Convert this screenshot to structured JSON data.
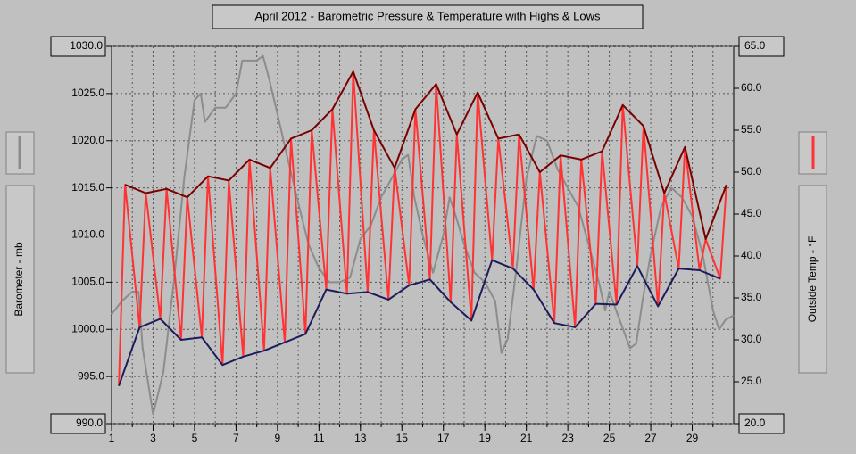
{
  "chart_data": {
    "type": "line",
    "title": "April 2012 - Barometric Pressure & Temperature with Highs & Lows",
    "ylabel": "Barometer - mb",
    "y2label": "Outside Temp - °F",
    "xlim": [
      1,
      31
    ],
    "xticks": [
      1,
      3,
      5,
      7,
      9,
      11,
      13,
      15,
      17,
      19,
      21,
      23,
      25,
      27,
      29
    ],
    "ylim": [
      990,
      1030
    ],
    "yticks": [
      {
        "value": 990,
        "label": "990.0"
      },
      {
        "value": 995,
        "label": "995.0"
      },
      {
        "value": 1000,
        "label": "1000.0"
      },
      {
        "value": 1005,
        "label": "1005.0"
      },
      {
        "value": 1010,
        "label": "1010.0"
      },
      {
        "value": 1015,
        "label": "1015.0"
      },
      {
        "value": 1020,
        "label": "1020.0"
      },
      {
        "value": 1025,
        "label": "1025.0"
      },
      {
        "value": 1030,
        "label": "1030.0"
      }
    ],
    "y2lim": [
      20,
      65
    ],
    "y2ticks": [
      {
        "value": 20,
        "label": "20.0"
      },
      {
        "value": 25,
        "label": "25.0"
      },
      {
        "value": 30,
        "label": "30.0"
      },
      {
        "value": 35,
        "label": "35.0"
      },
      {
        "value": 40,
        "label": "40.0"
      },
      {
        "value": 45,
        "label": "45.0"
      },
      {
        "value": 50,
        "label": "50.0"
      },
      {
        "value": 55,
        "label": "55.0"
      },
      {
        "value": 60,
        "label": "60.0"
      },
      {
        "value": 65,
        "label": "65.0"
      }
    ],
    "grid": true,
    "series": [
      {
        "color": "#8c8c8c",
        "axis": "y",
        "x": [
          1,
          1.5,
          2,
          2.3,
          2.5,
          3,
          3.5,
          4,
          4.5,
          5,
          5.3,
          5.5,
          6,
          6.5,
          7,
          7.3,
          8,
          8.3,
          8.6,
          9,
          9.5,
          10,
          10.5,
          11,
          11.5,
          12,
          12.5,
          13,
          13.5,
          14,
          14.5,
          15,
          15.3,
          15.6,
          16,
          16.5,
          17,
          17.3,
          17.6,
          18,
          18.5,
          19,
          19.5,
          19.8,
          20.1,
          20.5,
          21,
          21.5,
          22,
          22.5,
          23,
          23.5,
          24,
          24.5,
          24.8,
          25,
          25.5,
          26,
          26.3,
          26.6,
          27,
          27.5,
          28,
          28.5,
          29,
          29.5,
          30,
          30.3,
          30.6,
          31
        ],
        "values": [
          1001.6,
          1003,
          1004,
          1004,
          998,
          991,
          995.5,
          1005,
          1016,
          1024.3,
          1025,
          1022,
          1023.5,
          1023.5,
          1025,
          1028.5,
          1028.5,
          1029,
          1026.5,
          1022.8,
          1018,
          1013.4,
          1009,
          1006.5,
          1005,
          1005,
          1005.5,
          1009.6,
          1011,
          1014,
          1016,
          1018,
          1018.5,
          1014,
          1010,
          1006,
          1010,
          1014,
          1012,
          1009,
          1006,
          1005,
          1003,
          997.5,
          999,
          1006,
          1016,
          1020.5,
          1020,
          1017,
          1015,
          1013,
          1009,
          1005,
          1002,
          1004,
          1001,
          998,
          998.5,
          1003,
          1008,
          1013,
          1015,
          1014,
          1012,
          1008,
          1002,
          1000,
          1001,
          1001.5
        ]
      },
      {
        "color": "#ff3333",
        "axis": "y2",
        "x": [
          1.35,
          1.65,
          2.35,
          2.65,
          3.35,
          3.65,
          4.35,
          4.65,
          5.35,
          5.65,
          6.35,
          6.65,
          7.35,
          7.65,
          8.35,
          8.65,
          9.35,
          9.65,
          10.35,
          10.65,
          11.35,
          11.65,
          12.35,
          12.65,
          13.35,
          13.65,
          14.35,
          14.65,
          15.35,
          15.65,
          16.35,
          16.65,
          17.35,
          17.65,
          18.35,
          18.65,
          19.35,
          19.65,
          20.35,
          20.65,
          21.35,
          21.65,
          22.35,
          22.65,
          23.35,
          23.65,
          24.35,
          24.65,
          25.35,
          25.65,
          26.35,
          26.65,
          27.35,
          27.65,
          28.35,
          28.65,
          29.35,
          29.65,
          30.35,
          30.65
        ],
        "values": [
          24.5,
          48.5,
          31.5,
          47.5,
          32.5,
          48,
          30,
          47,
          30.3,
          49.5,
          27,
          49,
          28,
          51.5,
          28.7,
          50.5,
          29.7,
          54,
          30.7,
          55,
          36,
          57.5,
          35.5,
          62,
          35.7,
          55,
          34.8,
          50.5,
          36.5,
          57.5,
          37.2,
          60.5,
          34.5,
          54.5,
          32.3,
          59.5,
          39.5,
          54,
          38.5,
          54.5,
          36,
          50,
          32,
          52,
          31.5,
          51.5,
          34.3,
          52.5,
          34.2,
          58,
          38.8,
          55.5,
          34,
          47.5,
          38.5,
          53,
          38.3,
          42,
          37.3,
          48.5
        ]
      },
      {
        "color": "#7a0000",
        "axis": "y2",
        "x": [
          1.65,
          2.65,
          3.65,
          4.65,
          5.65,
          6.65,
          7.65,
          8.65,
          9.65,
          10.65,
          11.65,
          12.65,
          13.65,
          14.65,
          15.65,
          16.65,
          17.65,
          18.65,
          19.65,
          20.65,
          21.65,
          22.65,
          23.65,
          24.65,
          25.65,
          26.65,
          27.65,
          28.65,
          29.65,
          30.65
        ],
        "values": [
          48.5,
          47.5,
          48,
          47,
          49.5,
          49,
          51.5,
          50.5,
          54,
          55,
          57.5,
          62,
          55,
          50.5,
          57.5,
          60.5,
          54.5,
          59.5,
          54,
          54.5,
          50,
          52,
          51.5,
          52.5,
          58,
          55.5,
          47.5,
          53,
          42,
          48.5
        ]
      },
      {
        "color": "#1c1c5c",
        "axis": "y2",
        "x": [
          1.35,
          2.35,
          3.35,
          4.35,
          5.35,
          6.35,
          7.35,
          8.35,
          9.35,
          10.35,
          11.35,
          12.35,
          13.35,
          14.35,
          15.35,
          16.35,
          17.35,
          18.35,
          19.35,
          20.35,
          21.35,
          22.35,
          23.35,
          24.35,
          25.35,
          26.35,
          27.35,
          28.35,
          29.35,
          30.35
        ],
        "values": [
          24.5,
          31.5,
          32.5,
          30,
          30.3,
          27,
          28,
          28.7,
          29.7,
          30.7,
          36,
          35.5,
          35.7,
          34.8,
          36.5,
          37.2,
          34.5,
          32.3,
          39.5,
          38.5,
          36,
          32,
          31.5,
          34.3,
          34.2,
          38.8,
          34,
          38.5,
          38.3,
          37.3
        ]
      }
    ]
  }
}
